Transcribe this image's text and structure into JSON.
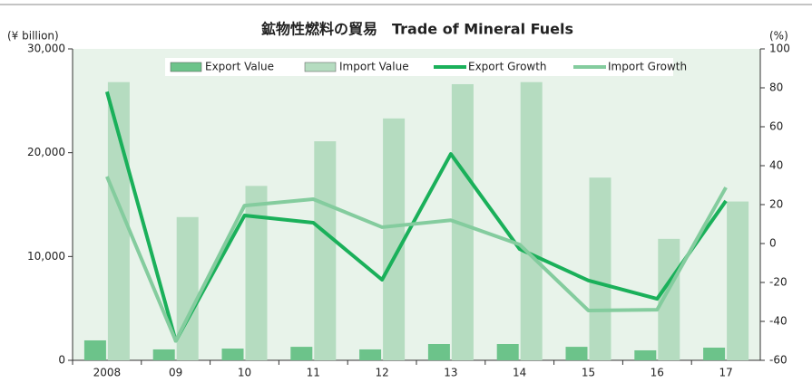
{
  "chart_data": {
    "type": "bar_line_dual",
    "title": "鉱物性燃料の貿易　Trade of Mineral Fuels",
    "y_label": "(¥ billion)",
    "y2_label": "(%)",
    "categories": [
      "2008",
      "09",
      "10",
      "11",
      "12",
      "13",
      "14",
      "15",
      "16",
      "17"
    ],
    "series": [
      {
        "name": "Export Value",
        "kind": "bar",
        "color": "#6cc38a",
        "values": [
          1920,
          1050,
          1130,
          1300,
          1050,
          1570,
          1570,
          1300,
          960,
          1220
        ]
      },
      {
        "name": "Import Value",
        "kind": "bar",
        "color": "#b5dcc0",
        "values": [
          26800,
          13800,
          16800,
          21100,
          23300,
          26600,
          26800,
          17600,
          11700,
          15300
        ]
      },
      {
        "name": "Export Growth",
        "kind": "line",
        "axis": "y2",
        "color": "#1ab05a",
        "values": [
          78,
          -50,
          14.4,
          10.7,
          -18.6,
          46,
          -2.8,
          -19,
          -28.4,
          21.9
        ]
      },
      {
        "name": "Import Growth",
        "kind": "line",
        "axis": "y2",
        "color": "#84cc9e",
        "values": [
          34.4,
          -50,
          19.5,
          22.8,
          8.4,
          12,
          -0.5,
          -34.4,
          -34,
          28.8
        ]
      }
    ],
    "ylim": [
      0,
      30000
    ],
    "yticks": [
      0,
      {
        "value": 10000,
        "label": "10,000"
      },
      {
        "value": 20000,
        "label": "20,000"
      },
      {
        "value": 30000,
        "label": "30,000"
      }
    ],
    "y2lim": [
      -60,
      100
    ],
    "y2ticks": [
      -60,
      -40,
      -20,
      0,
      20,
      40,
      60,
      80,
      100
    ],
    "legend": "top"
  }
}
